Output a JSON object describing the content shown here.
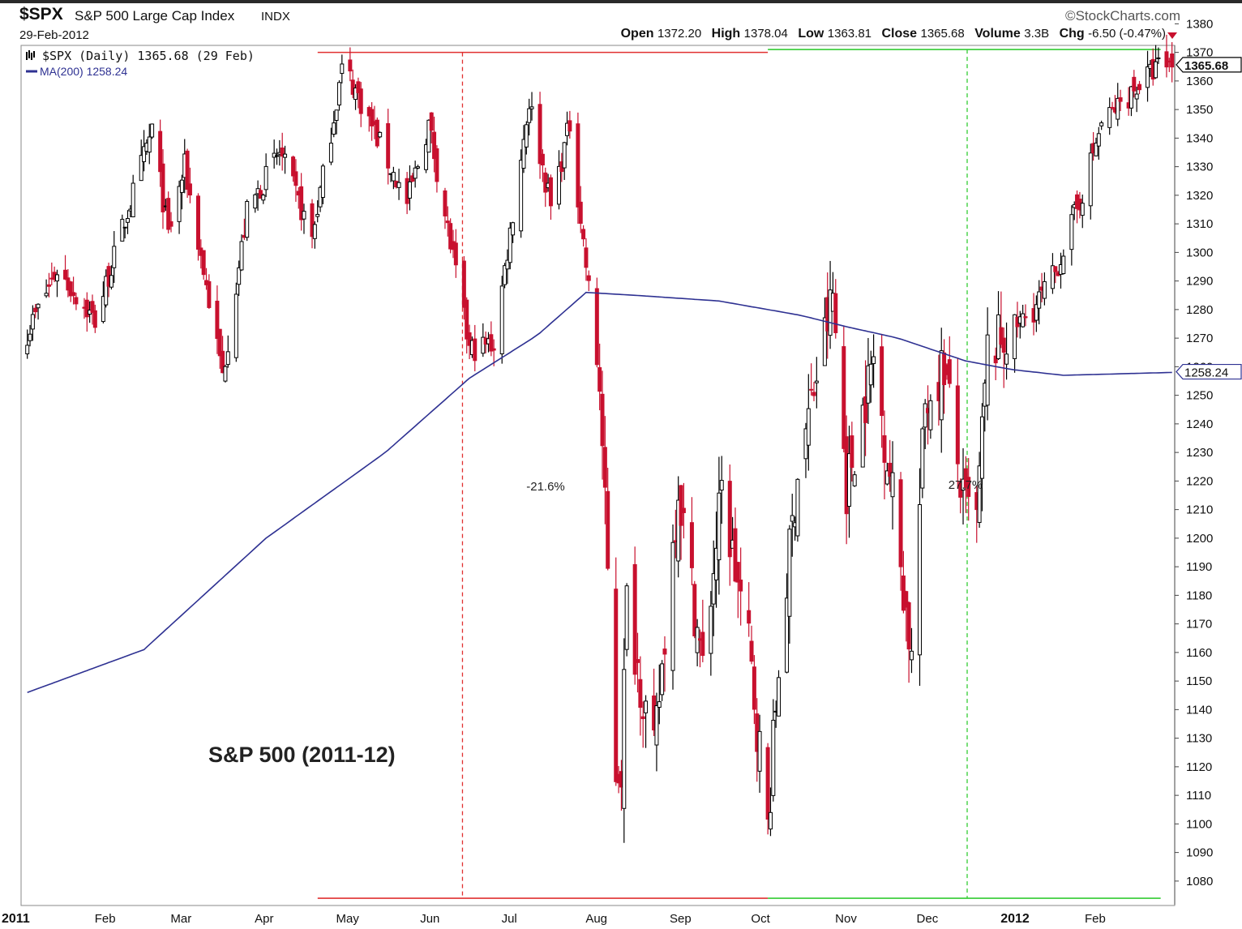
{
  "header": {
    "symbol": "$SPX",
    "name": "S&P 500 Large Cap Index",
    "exchange": "INDX",
    "date": "29-Feb-2012",
    "brand": "©StockCharts.com",
    "open_label": "Open",
    "open": "1372.20",
    "high_label": "High",
    "high": "1378.04",
    "low_label": "Low",
    "low": "1363.81",
    "close_label": "Close",
    "close": "1365.68",
    "volume_label": "Volume",
    "volume": "3.3B",
    "chg_label": "Chg",
    "chg": "-6.50 (-0.47%)"
  },
  "legend": {
    "price": "$SPX (Daily) 1365.68 (29 Feb)",
    "ma": "MA(200) 1258.24"
  },
  "annotations": {
    "chart_label": "S&P 500 (2011-12)",
    "drop_pct": "-21.6%",
    "rise_pct": "27.7%"
  },
  "colors": {
    "up": "#000000",
    "down": "#c8102e",
    "ma": "#2e3192",
    "drop_lines": "#e03030",
    "rise_lines": "#33cc33"
  },
  "chart_data": {
    "type": "candlestick",
    "title": "S&P 500 (2011-12)",
    "y_ticks": [
      1080,
      1090,
      1100,
      1110,
      1120,
      1130,
      1140,
      1150,
      1160,
      1170,
      1180,
      1190,
      1200,
      1210,
      1220,
      1230,
      1240,
      1250,
      1260,
      1270,
      1280,
      1290,
      1300,
      1310,
      1320,
      1330,
      1340,
      1350,
      1360,
      1370,
      1380
    ],
    "x_labels": [
      {
        "label": "2011",
        "date": "2011-01-01",
        "bold": true
      },
      {
        "label": "Feb",
        "date": "2011-02-01"
      },
      {
        "label": "Mar",
        "date": "2011-03-01"
      },
      {
        "label": "Apr",
        "date": "2011-04-01"
      },
      {
        "label": "May",
        "date": "2011-05-01"
      },
      {
        "label": "Jun",
        "date": "2011-06-01"
      },
      {
        "label": "Jul",
        "date": "2011-07-01"
      },
      {
        "label": "Aug",
        "date": "2011-08-01"
      },
      {
        "label": "Sep",
        "date": "2011-09-01"
      },
      {
        "label": "Oct",
        "date": "2011-10-01"
      },
      {
        "label": "Nov",
        "date": "2011-11-01"
      },
      {
        "label": "Dec",
        "date": "2011-12-01"
      },
      {
        "label": "2012",
        "date": "2012-01-01",
        "bold": true
      },
      {
        "label": "Feb",
        "date": "2012-02-01"
      }
    ],
    "last_price": "1365.68",
    "ma_last": "1258.24",
    "price_anchors": [
      [
        "2011-01-03",
        1272
      ],
      [
        "2011-01-14",
        1294
      ],
      [
        "2011-01-28",
        1276
      ],
      [
        "2011-02-18",
        1343
      ],
      [
        "2011-02-24",
        1306
      ],
      [
        "2011-03-02",
        1330
      ],
      [
        "2011-03-16",
        1257
      ],
      [
        "2011-03-25",
        1314
      ],
      [
        "2011-04-06",
        1335
      ],
      [
        "2011-04-18",
        1305
      ],
      [
        "2011-04-29",
        1364
      ],
      [
        "2011-05-02",
        1361
      ],
      [
        "2011-05-23",
        1317
      ],
      [
        "2011-05-31",
        1345
      ],
      [
        "2011-06-15",
        1266
      ],
      [
        "2011-06-24",
        1268
      ],
      [
        "2011-07-07",
        1353
      ],
      [
        "2011-07-15",
        1316
      ],
      [
        "2011-07-22",
        1345
      ],
      [
        "2011-08-02",
        1254
      ],
      [
        "2011-08-08",
        1119
      ],
      [
        "2011-08-10",
        1120
      ],
      [
        "2011-08-12",
        1178
      ],
      [
        "2011-08-22",
        1123
      ],
      [
        "2011-08-31",
        1219
      ],
      [
        "2011-09-09",
        1154
      ],
      [
        "2011-09-16",
        1216
      ],
      [
        "2011-09-26",
        1162
      ],
      [
        "2011-10-03",
        1099
      ],
      [
        "2011-10-07",
        1155
      ],
      [
        "2011-10-14",
        1224
      ],
      [
        "2011-10-27",
        1285
      ],
      [
        "2011-11-01",
        1218
      ],
      [
        "2011-11-11",
        1263
      ],
      [
        "2011-11-18",
        1216
      ],
      [
        "2011-11-25",
        1158
      ],
      [
        "2011-11-30",
        1247
      ],
      [
        "2011-12-07",
        1261
      ],
      [
        "2011-12-14",
        1212
      ],
      [
        "2011-12-19",
        1206
      ],
      [
        "2011-12-23",
        1265
      ],
      [
        "2012-01-09",
        1280
      ],
      [
        "2012-01-17",
        1293
      ],
      [
        "2012-01-26",
        1318
      ],
      [
        "2012-02-03",
        1345
      ],
      [
        "2012-02-16",
        1358
      ],
      [
        "2012-02-24",
        1365
      ],
      [
        "2012-02-29",
        1366
      ]
    ],
    "ma_anchors": [
      [
        "2011-01-03",
        1146
      ],
      [
        "2011-02-15",
        1161
      ],
      [
        "2011-04-01",
        1200
      ],
      [
        "2011-05-15",
        1230
      ],
      [
        "2011-06-15",
        1256
      ],
      [
        "2011-07-10",
        1271
      ],
      [
        "2011-07-28",
        1286
      ],
      [
        "2011-08-15",
        1285
      ],
      [
        "2011-09-15",
        1283
      ],
      [
        "2011-10-15",
        1278
      ],
      [
        "2011-11-01",
        1274
      ],
      [
        "2011-11-20",
        1270
      ],
      [
        "2011-12-15",
        1262
      ],
      [
        "2012-01-01",
        1259
      ],
      [
        "2012-01-20",
        1257
      ],
      [
        "2012-02-29",
        1258
      ]
    ],
    "drop": {
      "label": "-21.6%",
      "start": "2011-04-29",
      "end": "2011-10-03",
      "high": 1370,
      "low": 1074
    },
    "rise": {
      "label": "27.7%",
      "start": "2011-10-03",
      "end": "2012-02-29",
      "high": 1371,
      "low": 1074
    }
  }
}
